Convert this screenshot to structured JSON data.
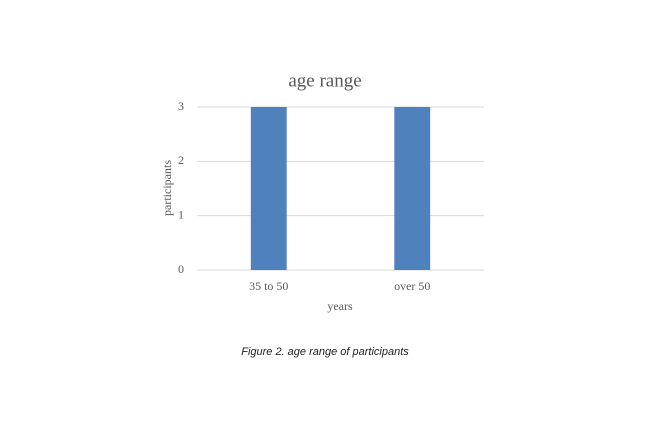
{
  "chart_data": {
    "type": "bar",
    "title": "age range",
    "categories": [
      "35 to 50",
      "over 50"
    ],
    "values": [
      3,
      3
    ],
    "color": "#4f81bd",
    "x_label": "years",
    "y_label": "participants",
    "ylim": [
      0,
      3
    ],
    "yticks": [
      0,
      1,
      2,
      3
    ],
    "grid": true
  },
  "caption": "Figure 2. age range of participants"
}
